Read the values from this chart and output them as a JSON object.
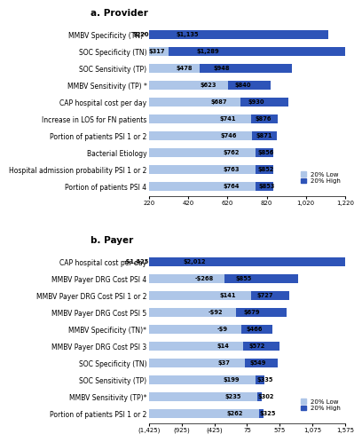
{
  "panel_a": {
    "title": "a. Provider",
    "categories": [
      "MMBV Specificity (TN)*",
      "SOC Specificity (TN)",
      "SOC Sensitivity (TP)",
      "MMBV Sensitivity (TP) *",
      "CAP hospital cost per day",
      "Increase in LOS for FN patients",
      "Portion of patients PSI 1 or 2",
      "Bacterial Etiology",
      "Hospital admission probability PSI 1 or 2",
      "Portion of patients PSI 4"
    ],
    "low_values": [
      220,
      317,
      478,
      623,
      687,
      741,
      746,
      762,
      763,
      764
    ],
    "high_values": [
      1135,
      1289,
      948,
      840,
      930,
      876,
      871,
      856,
      852,
      853
    ],
    "xmin": 220,
    "xmax": 1220,
    "xticks": [
      220,
      420,
      620,
      820,
      1020,
      1220
    ],
    "xtick_labels": [
      "220",
      "420",
      "620",
      "820",
      "1,020",
      "1,220"
    ]
  },
  "panel_b": {
    "title": "b. Payer",
    "categories": [
      "CAP hospital cost per day",
      "MMBV Payer DRG Cost PSI 4",
      "MMBV Payer DRG Cost PSI 1 or 2",
      "MMBV Payer DRG Cost PSI 5",
      "MMBV Specificity (TN)*",
      "MMBV Payer DRG Cost PSI 3",
      "SOC Specificity (TN)",
      "SOC Sensitivity (TP)",
      "MMBV Sensitivity (TP)*",
      "Portion of patients PSI 1 or 2"
    ],
    "low_values": [
      -1425,
      -268,
      141,
      -92,
      -9,
      14,
      37,
      199,
      235,
      262
    ],
    "high_values": [
      2012,
      855,
      727,
      679,
      466,
      572,
      549,
      335,
      302,
      325
    ],
    "xmin": -1425,
    "xmax": 1575,
    "xticks": [
      -1425,
      -925,
      -425,
      75,
      575,
      1075,
      1575
    ],
    "xtick_labels": [
      "(1,425)",
      "(925)",
      "(425)",
      "75",
      "575",
      "1,075",
      "1,575"
    ]
  },
  "color_low": "#aec6e8",
  "color_high": "#2e54b8",
  "bar_height": 0.52,
  "label_fontsize": 5.5,
  "tick_fontsize": 5.0,
  "title_fontsize": 7.5,
  "value_fontsize": 4.8,
  "legend_fontsize": 5.0
}
